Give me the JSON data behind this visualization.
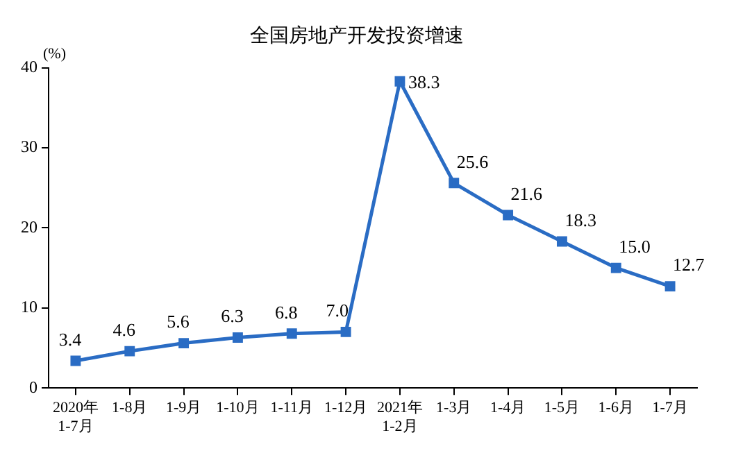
{
  "chart_data": {
    "type": "line",
    "title": "全国房地产开发投资增速",
    "ylabel": "(%)",
    "categories": [
      "2020年\n1-7月",
      "1-8月",
      "1-9月",
      "1-10月",
      "1-11月",
      "1-12月",
      "2021年\n1-2月",
      "1-3月",
      "1-4月",
      "1-5月",
      "1-6月",
      "1-7月"
    ],
    "series": [
      {
        "color": "#2a6cc4",
        "values": [
          3.4,
          4.6,
          5.6,
          6.3,
          6.8,
          7.0,
          38.3,
          25.6,
          21.6,
          18.3,
          15.0,
          12.7
        ],
        "value_labels": [
          "3.4",
          "4.6",
          "5.6",
          "6.3",
          "6.8",
          "7.0",
          "38.3",
          "25.6",
          "21.6",
          "18.3",
          "15.0",
          "12.7"
        ]
      }
    ],
    "ylim": [
      0,
      40
    ],
    "yticks": [
      0,
      10,
      20,
      30,
      40
    ],
    "grid": false,
    "legend": false,
    "marker": "square",
    "line_style": "solid"
  }
}
